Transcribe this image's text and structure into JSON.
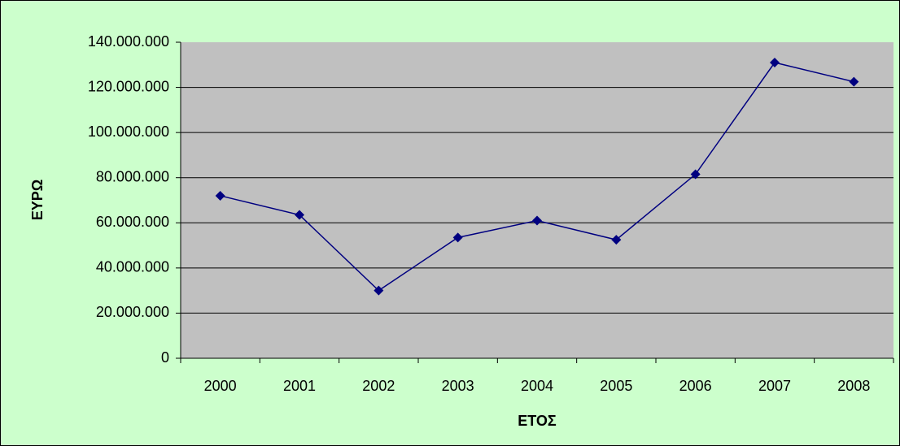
{
  "chart_data": {
    "type": "line",
    "x_label": "ΕΤΟΣ",
    "y_label": "ΕΥΡΩ",
    "categories": [
      "2000",
      "2001",
      "2002",
      "2003",
      "2004",
      "2005",
      "2006",
      "2007",
      "2008"
    ],
    "series": [
      {
        "color": "#000080",
        "values": [
          72000000,
          63500000,
          30000000,
          53500000,
          61000000,
          52500000,
          81500000,
          131000000,
          122500000
        ]
      }
    ],
    "ylim": [
      0,
      140000000
    ],
    "yticks": [
      0,
      {
        "value": 20000000,
        "label": "20.000.000"
      },
      {
        "value": 40000000,
        "label": "40.000.000"
      },
      {
        "value": 60000000,
        "label": "60.000.000"
      },
      {
        "value": 80000000,
        "label": "80.000.000"
      },
      {
        "value": 100000000,
        "label": "100.000.000"
      },
      {
        "value": 120000000,
        "label": "120.000.000"
      },
      {
        "value": 140000000,
        "label": "140.000.000"
      }
    ],
    "grid": true
  }
}
